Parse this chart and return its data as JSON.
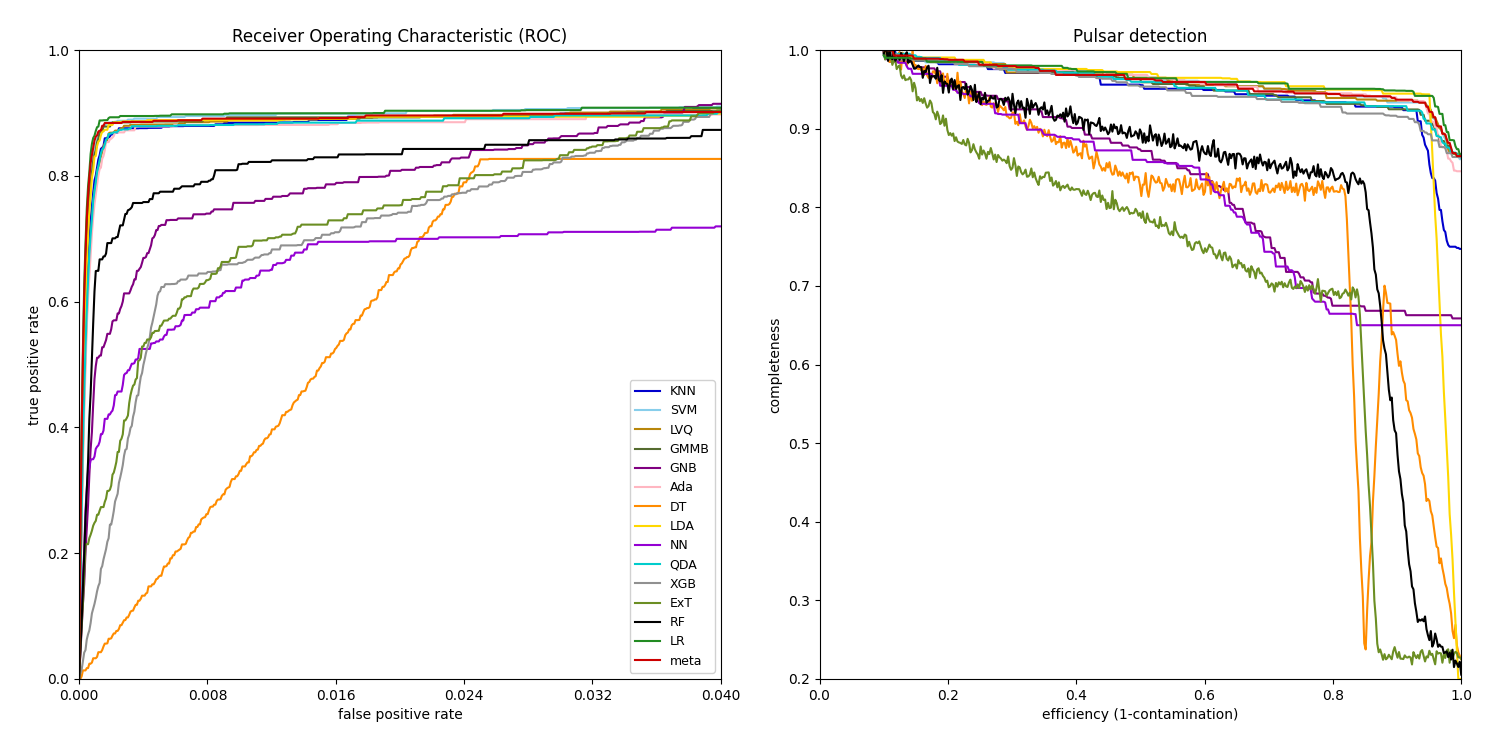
{
  "title_left": "Receiver Operating Characteristic (ROC)",
  "title_right": "Pulsar detection",
  "xlabel_left": "false positive rate",
  "ylabel_left": "true positive rate",
  "xlabel_right": "efficiency (1-contamination)",
  "ylabel_right": "completeness",
  "xlim_left": [
    0.0,
    0.04
  ],
  "ylim_left": [
    0.0,
    1.0
  ],
  "xlim_right": [
    0.0,
    1.0
  ],
  "ylim_right": [
    0.2,
    1.0
  ],
  "xticks_left": [
    0.0,
    0.008,
    0.016,
    0.024,
    0.032,
    0.04
  ],
  "classifiers": [
    "KNN",
    "SVM",
    "LVQ",
    "GMMB",
    "GNB",
    "Ada",
    "DT",
    "LDA",
    "NN",
    "QDA",
    "XGB",
    "ExT",
    "RF",
    "LR",
    "meta"
  ],
  "colors": {
    "KNN": "#0000cd",
    "SVM": "#87ceeb",
    "LVQ": "#b8860b",
    "GMMB": "#556b2f",
    "GNB": "#800080",
    "Ada": "#ffb6c1",
    "DT": "#ff8c00",
    "LDA": "#ffd700",
    "NN": "#9400d3",
    "QDA": "#00cccc",
    "XGB": "#909090",
    "ExT": "#6b8e23",
    "RF": "#000000",
    "LR": "#228b22",
    "meta": "#cc0000"
  }
}
